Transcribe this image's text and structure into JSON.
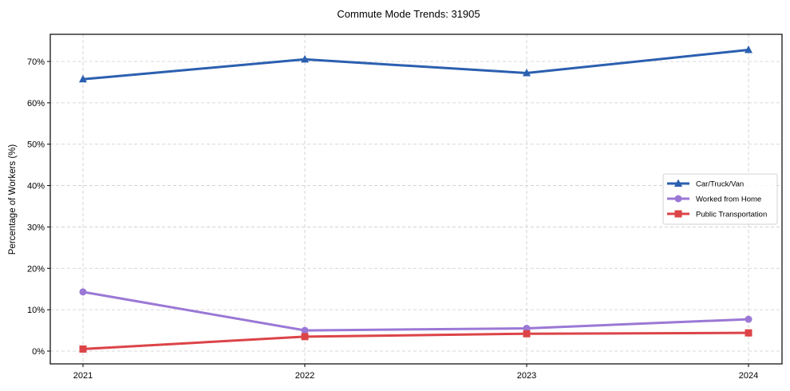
{
  "chart_data": {
    "type": "line",
    "title": "Commute Mode Trends: 31905",
    "xlabel": "",
    "ylabel": "Percentage of Workers (%)",
    "categories": [
      "2021",
      "2022",
      "2023",
      "2024"
    ],
    "ylim": [
      -3.2,
      76.5
    ],
    "yticks": [
      0,
      10,
      20,
      30,
      40,
      50,
      60,
      70
    ],
    "ytick_labels": [
      "0%",
      "10%",
      "20%",
      "30%",
      "40%",
      "50%",
      "60%",
      "70%"
    ],
    "grid": true,
    "legend_position": "center right",
    "series": [
      {
        "name": "Car/Truck/Van",
        "color": "#2b5fb0",
        "marker": "triangle",
        "values": [
          65.7,
          70.5,
          67.2,
          72.8
        ]
      },
      {
        "name": "Worked from Home",
        "color": "#9b78d6",
        "marker": "circle",
        "values": [
          14.3,
          5.0,
          5.5,
          7.7
        ]
      },
      {
        "name": "Public Transportation",
        "color": "#dc4448",
        "marker": "square",
        "values": [
          0.5,
          3.5,
          4.2,
          4.4
        ]
      }
    ]
  }
}
